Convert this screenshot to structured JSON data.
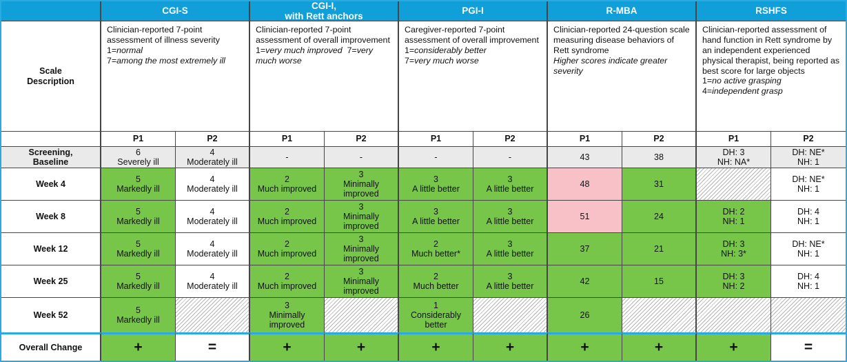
{
  "colors": {
    "header_bg": "#119fda",
    "accent_border": "#29abe2",
    "improvement_green": "#77c64a",
    "worsening_pink": "#f8c1c8",
    "baseline_gray": "#eaeaea",
    "grid_line": "#454545"
  },
  "table": {
    "scale_desc_label": "Scale\nDescription",
    "subheaders": [
      "P1",
      "P2"
    ],
    "columns": [
      {
        "name": "CGI-S",
        "description": [
          {
            "t": "Clinician-reported 7-point assessment of illness severity\n1=",
            "i": false
          },
          {
            "t": "normal",
            "i": true
          },
          {
            "t": "\n7=",
            "i": false
          },
          {
            "t": "among the most extremely ill",
            "i": true
          }
        ]
      },
      {
        "name": "CGI-I,\nwith Rett anchors",
        "description": [
          {
            "t": "Clinician-reported 7-point assessment of overall improvement\n1=",
            "i": false
          },
          {
            "t": "very much improved",
            "i": true
          },
          {
            "t": "  7=",
            "i": false
          },
          {
            "t": "very much worse",
            "i": true
          }
        ]
      },
      {
        "name": "PGI-I",
        "description": [
          {
            "t": "Caregiver-reported 7-point assessment of overall improvement\n1=",
            "i": false
          },
          {
            "t": "considerably better",
            "i": true
          },
          {
            "t": "\n7=",
            "i": false
          },
          {
            "t": "very much worse",
            "i": true
          }
        ]
      },
      {
        "name": "R-MBA",
        "description": [
          {
            "t": "Clinician-reported 24-question scale measuring disease behaviors of Rett syndrome\n",
            "i": false
          },
          {
            "t": "Higher scores indicate greater severity",
            "i": true
          }
        ]
      },
      {
        "name": "RSHFS",
        "description": [
          {
            "t": "Clinician-reported assessment of hand function in Rett syndrome by an independent experienced physical therapist, being reported as best score for large objects\n1=",
            "i": false
          },
          {
            "t": "no active grasping",
            "i": true
          },
          {
            "t": "\n4=",
            "i": false
          },
          {
            "t": "independent grasp",
            "i": true
          }
        ]
      }
    ],
    "rows": [
      {
        "label": "Screening,\nBaseline",
        "label_bg": "gray",
        "overall": false,
        "cells": [
          {
            "text": "6\nSeverely ill",
            "bg": "gray"
          },
          {
            "text": "4\nModerately ill",
            "bg": "gray"
          },
          {
            "text": "-",
            "bg": "gray"
          },
          {
            "text": "-",
            "bg": "gray"
          },
          {
            "text": "-",
            "bg": "gray"
          },
          {
            "text": "-",
            "bg": "gray"
          },
          {
            "text": "43",
            "bg": "gray"
          },
          {
            "text": "38",
            "bg": "gray"
          },
          {
            "text": "DH: 3\nNH: NA*",
            "bg": "gray"
          },
          {
            "text": "DH: NE*\nNH: 1",
            "bg": "gray"
          }
        ]
      },
      {
        "label": "Week 4",
        "label_bg": "white",
        "overall": false,
        "cells": [
          {
            "text": "5\nMarkedly ill",
            "bg": "green"
          },
          {
            "text": "4\nModerately ill",
            "bg": "white"
          },
          {
            "text": "2\nMuch improved",
            "bg": "green"
          },
          {
            "text": "3\nMinimally improved",
            "bg": "green"
          },
          {
            "text": "3\nA little better",
            "bg": "green"
          },
          {
            "text": "3\nA little better",
            "bg": "green"
          },
          {
            "text": "48",
            "bg": "pink"
          },
          {
            "text": "31",
            "bg": "green"
          },
          {
            "text": "",
            "bg": "hatch"
          },
          {
            "text": "DH: NE*\nNH: 1",
            "bg": "white"
          }
        ]
      },
      {
        "label": "Week 8",
        "label_bg": "white",
        "overall": false,
        "cells": [
          {
            "text": "5\nMarkedly ill",
            "bg": "green"
          },
          {
            "text": "4\nModerately ill",
            "bg": "white"
          },
          {
            "text": "2\nMuch improved",
            "bg": "green"
          },
          {
            "text": "3\nMinimally improved",
            "bg": "green"
          },
          {
            "text": "3\nA little better",
            "bg": "green"
          },
          {
            "text": "3\nA little better",
            "bg": "green"
          },
          {
            "text": "51",
            "bg": "pink"
          },
          {
            "text": "24",
            "bg": "green"
          },
          {
            "text": "DH: 2\nNH: 1",
            "bg": "green"
          },
          {
            "text": "DH: 4\nNH: 1",
            "bg": "white"
          }
        ]
      },
      {
        "label": "Week 12",
        "label_bg": "white",
        "overall": false,
        "cells": [
          {
            "text": "5\nMarkedly ill",
            "bg": "green"
          },
          {
            "text": "4\nModerately ill",
            "bg": "white"
          },
          {
            "text": "2\nMuch improved",
            "bg": "green"
          },
          {
            "text": "3\nMinimally improved",
            "bg": "green"
          },
          {
            "text": "2\nMuch better*",
            "bg": "green"
          },
          {
            "text": "3\nA little better",
            "bg": "green"
          },
          {
            "text": "37",
            "bg": "green"
          },
          {
            "text": "21",
            "bg": "green"
          },
          {
            "text": "DH: 3\nNH: 3*",
            "bg": "green"
          },
          {
            "text": "DH: NE*\nNH: 1",
            "bg": "white"
          }
        ]
      },
      {
        "label": "Week 25",
        "label_bg": "white",
        "overall": false,
        "cells": [
          {
            "text": "5\nMarkedly ill",
            "bg": "green"
          },
          {
            "text": "4\nModerately ill",
            "bg": "white"
          },
          {
            "text": "2\nMuch improved",
            "bg": "green"
          },
          {
            "text": "3\nMinimally improved",
            "bg": "green"
          },
          {
            "text": "2\nMuch better",
            "bg": "green"
          },
          {
            "text": "3\nA little better",
            "bg": "green"
          },
          {
            "text": "42",
            "bg": "green"
          },
          {
            "text": "15",
            "bg": "green"
          },
          {
            "text": "DH: 3\nNH: 2",
            "bg": "green"
          },
          {
            "text": "DH: 4\nNH: 1",
            "bg": "white"
          }
        ]
      },
      {
        "label": "Week 52",
        "label_bg": "white",
        "overall": false,
        "cells": [
          {
            "text": "5\nMarkedly ill",
            "bg": "green"
          },
          {
            "text": "",
            "bg": "hatch"
          },
          {
            "text": "3\nMinimally improved",
            "bg": "green"
          },
          {
            "text": "",
            "bg": "hatch"
          },
          {
            "text": "1\nConsiderably better",
            "bg": "green"
          },
          {
            "text": "",
            "bg": "hatch"
          },
          {
            "text": "26",
            "bg": "green"
          },
          {
            "text": "",
            "bg": "hatch"
          },
          {
            "text": "",
            "bg": "hatch"
          },
          {
            "text": "",
            "bg": "hatch"
          }
        ]
      },
      {
        "label": "Overall Change",
        "label_bg": "white",
        "overall": true,
        "cells": [
          {
            "text": "+",
            "bg": "green"
          },
          {
            "text": "=",
            "bg": "white"
          },
          {
            "text": "+",
            "bg": "green"
          },
          {
            "text": "+",
            "bg": "green"
          },
          {
            "text": "+",
            "bg": "green"
          },
          {
            "text": "+",
            "bg": "green"
          },
          {
            "text": "+",
            "bg": "green"
          },
          {
            "text": "+",
            "bg": "green"
          },
          {
            "text": "+",
            "bg": "green"
          },
          {
            "text": "=",
            "bg": "white"
          }
        ]
      }
    ]
  }
}
